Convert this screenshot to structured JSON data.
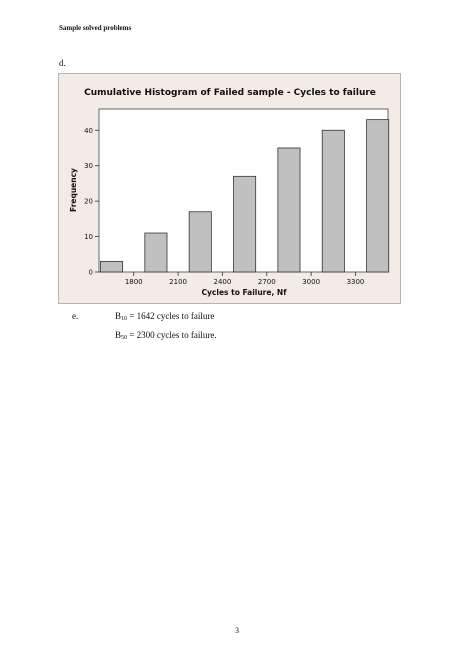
{
  "header": {
    "text": "Sample solved problems"
  },
  "item_d": {
    "label": "d."
  },
  "item_e": {
    "label": "e."
  },
  "results": [
    {
      "sym": "B",
      "sub": "10",
      "text": " = 1642 cycles to failure"
    },
    {
      "sym": "B",
      "sub": "50",
      "text": " = 2300 cycles to failure."
    }
  ],
  "page_number": "3",
  "colors": {
    "figure_bg": "#f2ebe6",
    "bar_fill": "#c0c0c0",
    "bar_stroke": "#333333"
  },
  "chart_data": {
    "type": "bar",
    "title": "Cumulative Histogram of Failed sample - Cycles to failure",
    "xlabel": "Cycles to Failure, Nf",
    "ylabel": "Frequency",
    "x": [
      1650,
      1800,
      1950,
      2100,
      2250,
      2400,
      2550,
      2700,
      2850,
      3000,
      3150,
      3300,
      3450
    ],
    "values": [
      3,
      0,
      11,
      0,
      17,
      0,
      27,
      0,
      35,
      0,
      40,
      0,
      43
    ],
    "bin_width": 150,
    "xticks": [
      1800,
      2100,
      2400,
      2700,
      3000,
      3300
    ],
    "yticks": [
      0,
      10,
      20,
      30,
      40
    ],
    "xlim": [
      1565,
      3520
    ],
    "ylim": [
      0,
      46
    ],
    "grid": false
  }
}
